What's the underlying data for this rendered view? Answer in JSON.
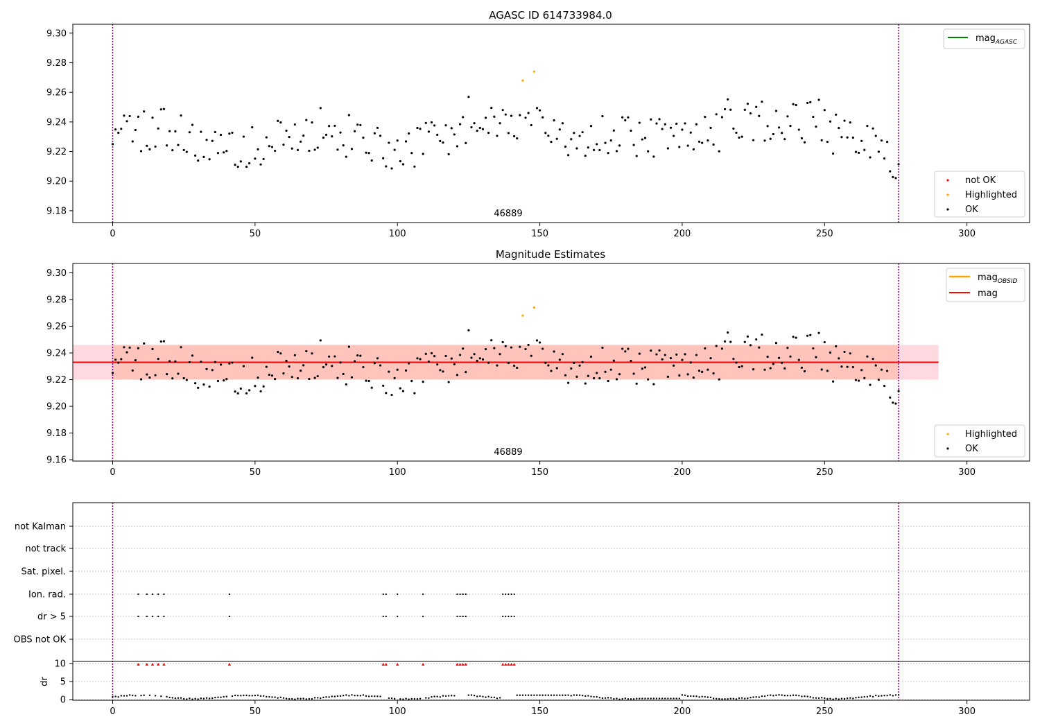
{
  "figure": {
    "obsid_label": "46889",
    "colors": {
      "ok": "#000000",
      "highlighted": "#ffa500",
      "not_ok": "#ff0000",
      "mag_agasc": "#008000",
      "mag_obsid": "#ffa500",
      "mag": "#ff0000",
      "band_outer": "#ffc0cb",
      "band_inner": "#ffa07a",
      "obs_line": "#800080"
    }
  },
  "chart_data": [
    {
      "type": "scatter",
      "title": "AGASC ID 614733984.0",
      "xlim": [
        -14,
        322
      ],
      "ylim": [
        9.172,
        9.306
      ],
      "xticks": [
        0,
        50,
        100,
        150,
        200,
        250,
        300
      ],
      "yticks": [
        9.18,
        9.2,
        9.22,
        9.24,
        9.26,
        9.28,
        9.3
      ],
      "obs_boundaries": [
        0,
        276
      ],
      "legend_lines": [
        {
          "name": "mag",
          "sub": "AGASC"
        }
      ],
      "legend_points": [
        "not OK",
        "Highlighted",
        "OK"
      ],
      "highlighted_points": [
        [
          144,
          9.268
        ],
        [
          148,
          9.274
        ]
      ]
    },
    {
      "type": "scatter",
      "title": "Magnitude Estimates",
      "xlim": [
        -14,
        322
      ],
      "ylim": [
        9.159,
        9.307
      ],
      "xticks": [
        0,
        50,
        100,
        150,
        200,
        250,
        300
      ],
      "yticks": [
        9.16,
        9.18,
        9.2,
        9.22,
        9.24,
        9.26,
        9.28,
        9.3
      ],
      "obs_boundaries": [
        0,
        276
      ],
      "mag": 9.233,
      "band_outer": [
        9.22,
        9.246
      ],
      "band_inner": [
        9.22,
        9.246
      ],
      "band_x": [
        -14,
        290
      ],
      "legend_lines": [
        {
          "name": "mag",
          "sub": "OBSID"
        },
        {
          "name": "mag",
          "sub": ""
        }
      ],
      "legend_points": [
        "Highlighted",
        "OK"
      ],
      "highlighted_points": [
        [
          144,
          9.268
        ],
        [
          148,
          9.274
        ]
      ]
    },
    {
      "type": "scatter",
      "title": "",
      "xlim": [
        -14,
        322
      ],
      "flag_labels": [
        "not Kalman",
        "not track",
        "Sat. pixel.",
        "Ion. rad.",
        "dr > 5",
        "OBS not OK"
      ],
      "flag_indices": {
        "Ion. rad.": [
          9,
          12,
          14,
          16,
          18,
          41,
          95,
          96,
          100,
          109,
          121,
          122,
          123,
          124,
          137,
          138,
          139,
          140,
          141
        ],
        "dr > 5": [
          9,
          12,
          14,
          16,
          18,
          41,
          95,
          96,
          100,
          109,
          121,
          122,
          123,
          124,
          137,
          138,
          139,
          140,
          141
        ]
      },
      "dr_label": "dr",
      "dr_ylim": [
        0,
        10
      ],
      "dr_yticks": [
        0,
        5,
        10
      ],
      "dr_clipped_indices": [
        9,
        12,
        14,
        16,
        18,
        41,
        95,
        96,
        100,
        109,
        121,
        122,
        123,
        124,
        137,
        138,
        139,
        140,
        141
      ]
    }
  ]
}
